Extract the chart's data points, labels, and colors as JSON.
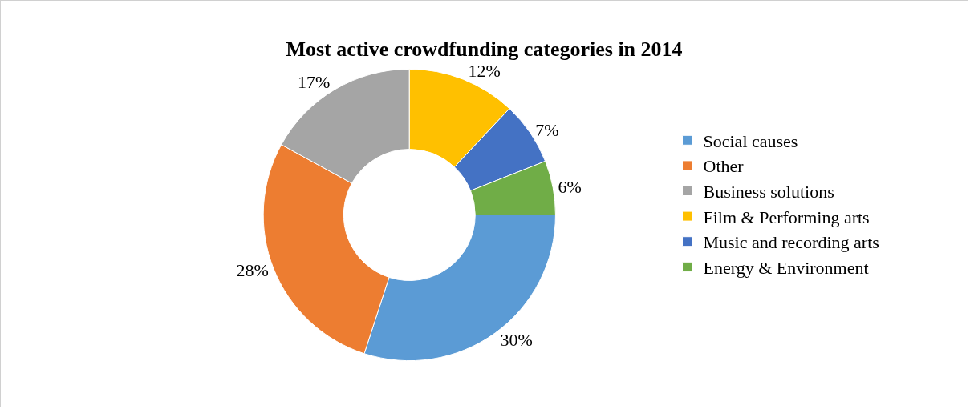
{
  "chart_data": {
    "type": "donut",
    "title": "Most active crowdfunding categories in 2014",
    "categories": [
      "Social causes",
      "Other",
      "Business solutions",
      "Film & Performing arts",
      "Music and recording arts",
      "Energy & Environment"
    ],
    "values": [
      30,
      28,
      17,
      12,
      7,
      6
    ],
    "colors": [
      "#5b9bd5",
      "#ed7d31",
      "#a5a5a5",
      "#ffc000",
      "#4472c4",
      "#70ad47"
    ],
    "value_labels": [
      "30%",
      "28%",
      "17%",
      "12%",
      "7%",
      "6%"
    ],
    "legend": "right"
  }
}
